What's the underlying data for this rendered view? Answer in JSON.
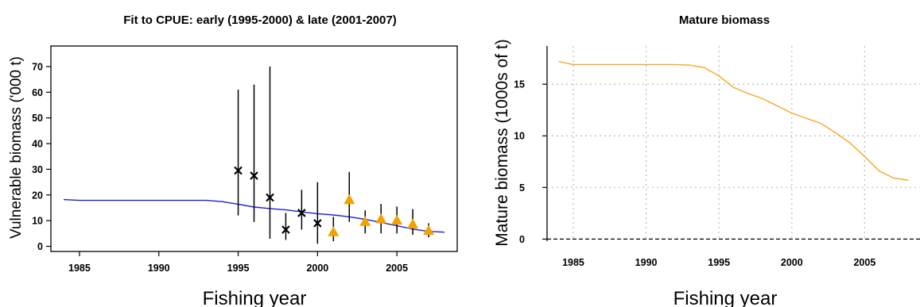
{
  "chart_data": [
    {
      "type": "line",
      "title": "Fit to CPUE: early (1995-2000) & late (2001-2007)",
      "xlabel": "Fishing year",
      "ylabel": "Vulnerable biomass ('000 t)",
      "xlim": [
        1983.2,
        2008.8
      ],
      "ylim": [
        -2,
        78
      ],
      "xticks": [
        1985,
        1990,
        1995,
        2000,
        2005
      ],
      "yticks": [
        0,
        10,
        20,
        30,
        40,
        50,
        60,
        70
      ],
      "grid": false,
      "colors": {
        "fit": "#1f1fd6",
        "early": "#000000",
        "late": "#f0a300"
      },
      "series": [
        {
          "kind": "line",
          "x": [
            1984,
            1985,
            1986,
            1987,
            1988,
            1989,
            1990,
            1991,
            1992,
            1993,
            1994,
            1995,
            1996,
            1997,
            1998,
            1999,
            2000,
            2001,
            2002,
            2003,
            2004,
            2005,
            2006,
            2007,
            2008
          ],
          "y": [
            18.2,
            17.9,
            17.9,
            17.9,
            17.9,
            17.9,
            17.9,
            17.9,
            17.9,
            17.9,
            17.4,
            16.4,
            15.3,
            14.7,
            14.2,
            13.4,
            12.7,
            12.2,
            11.5,
            10.5,
            9.3,
            8.0,
            6.7,
            5.8,
            5.5
          ]
        },
        {
          "kind": "points-early",
          "marker": "x",
          "x": [
            1995,
            1996,
            1997,
            1998,
            1999,
            2000
          ],
          "y": [
            29.5,
            27.5,
            19.0,
            6.5,
            13.0,
            9.0
          ],
          "lower": [
            12.0,
            9.5,
            3.0,
            2.5,
            6.5,
            1.0
          ],
          "upper": [
            61.0,
            63.0,
            70.0,
            13.0,
            22.0,
            25.0
          ]
        },
        {
          "kind": "points-late",
          "marker": "triangle",
          "x": [
            2001,
            2002,
            2003,
            2004,
            2005,
            2006,
            2007
          ],
          "y": [
            5.5,
            18.0,
            9.5,
            10.5,
            10.0,
            8.5,
            6.0
          ],
          "lower": [
            2.0,
            9.5,
            5.0,
            5.0,
            5.0,
            4.5,
            3.5
          ],
          "upper": [
            11.5,
            29.0,
            14.0,
            16.5,
            15.5,
            14.5,
            9.0
          ]
        }
      ]
    },
    {
      "type": "line",
      "title": "Mature biomass",
      "xlabel": "Fishing year",
      "ylabel": "Mature biomass (1000s of t)",
      "xlim": [
        1983.2,
        2008.8
      ],
      "ylim": [
        -0.2,
        18.7
      ],
      "xticks": [
        1985,
        1990,
        1995,
        2000,
        2005
      ],
      "yticks": [
        0,
        5,
        10,
        15
      ],
      "grid": true,
      "colors": {
        "line": "#f5a623",
        "grid": "#bbbbbb"
      },
      "reference_line_y": 0,
      "series": [
        {
          "kind": "line",
          "x": [
            1984,
            1985,
            1986,
            1987,
            1988,
            1989,
            1990,
            1991,
            1992,
            1993,
            1994,
            1995,
            1996,
            1997,
            1998,
            1999,
            2000,
            2001,
            2002,
            2003,
            2004,
            2005,
            2006,
            2007,
            2008
          ],
          "y": [
            17.2,
            16.9,
            16.9,
            16.9,
            16.9,
            16.9,
            16.9,
            16.9,
            16.9,
            16.85,
            16.6,
            15.8,
            14.7,
            14.1,
            13.6,
            12.9,
            12.2,
            11.7,
            11.2,
            10.3,
            9.3,
            8.0,
            6.6,
            5.9,
            5.7
          ]
        }
      ]
    }
  ]
}
